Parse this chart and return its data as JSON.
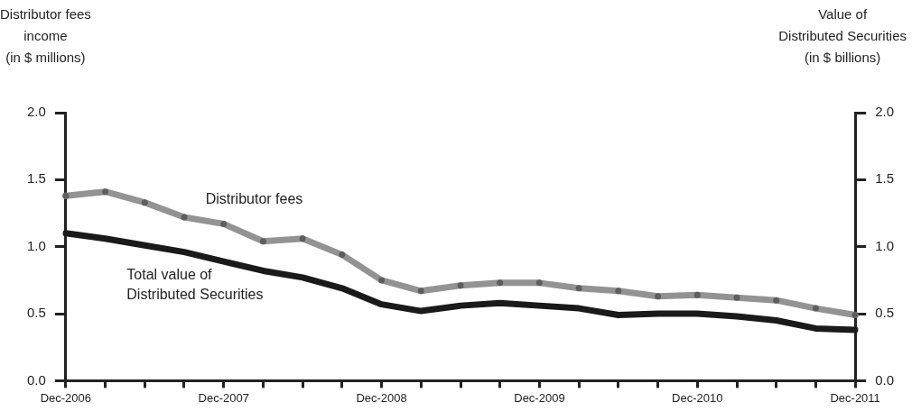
{
  "chart_data": {
    "type": "line",
    "ylabel": "Distributor fees\nincome\n(in $ millions)",
    "y2label": "Value of\nDistributed Securities\n(in $ billions)",
    "categories": [
      "Dec-2006",
      null,
      null,
      null,
      "Dec-2007",
      null,
      null,
      null,
      "Dec-2008",
      null,
      null,
      null,
      "Dec-2009",
      null,
      null,
      null,
      "Dec-2010",
      null,
      null,
      null,
      "Dec-2011"
    ],
    "series": [
      {
        "name": "Distributor fees",
        "color": "#939393",
        "marker": "circle",
        "values": [
          1.38,
          1.41,
          1.33,
          1.22,
          1.17,
          1.04,
          1.06,
          0.94,
          0.75,
          0.67,
          0.71,
          0.73,
          0.73,
          0.69,
          0.67,
          0.63,
          0.64,
          0.62,
          0.6,
          0.54,
          0.49
        ]
      },
      {
        "name": "Total value of\nDistributed Securities",
        "color": "#1a1a1a",
        "axis": "y2",
        "marker": "none",
        "values": [
          1.1,
          1.06,
          1.01,
          0.96,
          0.89,
          0.82,
          0.77,
          0.69,
          0.57,
          0.52,
          0.56,
          0.58,
          0.56,
          0.54,
          0.49,
          0.5,
          0.5,
          0.48,
          0.45,
          0.39,
          0.38
        ]
      }
    ],
    "ylim": [
      0,
      2
    ],
    "yticks": [
      {
        "value": 0,
        "label": "0.0"
      },
      0.5,
      {
        "value": 1,
        "label": "1.0"
      },
      1.5,
      {
        "value": 2,
        "label": "2.0"
      }
    ],
    "y2lim": [
      0,
      2
    ],
    "y2ticks": [
      {
        "value": 0,
        "label": "0.0"
      },
      0.5,
      {
        "value": 1,
        "label": "1.0"
      },
      1.5,
      {
        "value": 2,
        "label": "2.0"
      }
    ],
    "grid": false,
    "legend": false,
    "line_style": "solid"
  }
}
